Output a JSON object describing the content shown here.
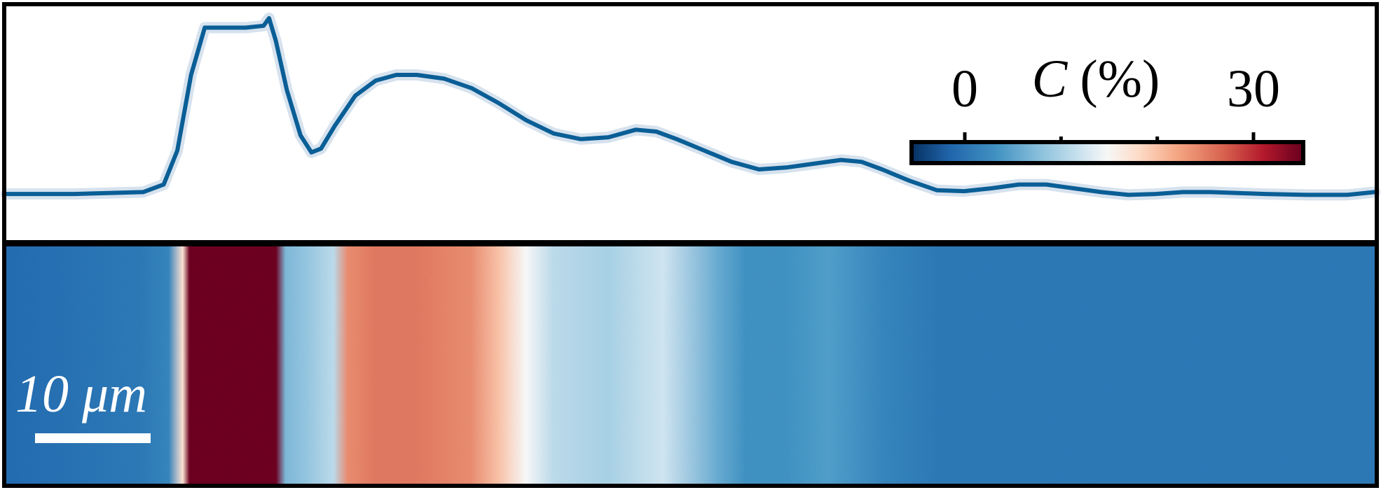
{
  "chart_data": {
    "type": "line",
    "title": "",
    "xlabel": "",
    "ylabel": "",
    "xlim": [
      0,
      100
    ],
    "ylim": [
      0,
      100
    ],
    "grid": false,
    "series": [
      {
        "color": "#0a5e96",
        "band_color": "#d6e2ee",
        "points": [
          [
            0,
            7
          ],
          [
            5,
            7
          ],
          [
            10,
            8
          ],
          [
            11.5,
            12
          ],
          [
            12.5,
            30
          ],
          [
            13.5,
            70
          ],
          [
            14.5,
            95
          ],
          [
            15.5,
            95
          ],
          [
            17.5,
            95
          ],
          [
            18.8,
            96
          ],
          [
            19.2,
            100
          ],
          [
            19.7,
            88
          ],
          [
            20.5,
            62
          ],
          [
            21.5,
            38
          ],
          [
            22.3,
            29
          ],
          [
            23,
            31
          ],
          [
            24,
            43
          ],
          [
            25.5,
            59
          ],
          [
            27,
            67
          ],
          [
            28.5,
            70
          ],
          [
            30,
            70
          ],
          [
            32,
            68
          ],
          [
            34,
            63
          ],
          [
            36,
            55
          ],
          [
            38,
            46
          ],
          [
            40,
            39
          ],
          [
            42,
            36
          ],
          [
            44,
            37
          ],
          [
            46,
            41
          ],
          [
            47.5,
            40
          ],
          [
            49,
            36
          ],
          [
            51,
            30
          ],
          [
            53,
            24
          ],
          [
            55,
            20
          ],
          [
            57,
            21
          ],
          [
            59,
            23
          ],
          [
            61,
            25
          ],
          [
            62.5,
            24
          ],
          [
            64,
            20
          ],
          [
            66,
            14
          ],
          [
            68,
            9
          ],
          [
            70,
            8.5
          ],
          [
            72,
            10
          ],
          [
            74,
            12
          ],
          [
            76,
            12
          ],
          [
            78,
            10
          ],
          [
            80,
            8
          ],
          [
            82,
            6.5
          ],
          [
            84,
            7
          ],
          [
            86,
            8
          ],
          [
            88,
            8
          ],
          [
            90,
            7.5
          ],
          [
            92,
            7
          ],
          [
            95,
            6.5
          ],
          [
            98,
            6.5
          ],
          [
            100,
            8
          ]
        ]
      }
    ],
    "heatmap": {
      "colormap": "RdBu_r",
      "vmin": 0,
      "vmax": 30,
      "column_profile": [
        [
          0,
          3
        ],
        [
          10,
          4
        ],
        [
          12,
          5
        ],
        [
          13,
          17
        ],
        [
          13.5,
          30
        ],
        [
          19,
          30
        ],
        [
          19.8,
          30
        ],
        [
          20.5,
          9
        ],
        [
          22,
          10
        ],
        [
          24,
          12
        ],
        [
          25,
          22
        ],
        [
          27,
          23
        ],
        [
          30,
          23
        ],
        [
          34,
          22
        ],
        [
          36,
          19
        ],
        [
          38,
          15
        ],
        [
          40,
          12
        ],
        [
          44,
          11
        ],
        [
          48,
          13
        ],
        [
          52,
          8
        ],
        [
          54,
          6
        ],
        [
          57,
          6
        ],
        [
          60,
          7
        ],
        [
          64,
          5
        ],
        [
          68,
          4
        ],
        [
          75,
          4
        ],
        [
          85,
          4
        ],
        [
          100,
          4
        ]
      ]
    },
    "colorbar": {
      "label_var": "C",
      "label_unit": "(%)",
      "tick_labels": [
        "0",
        "30"
      ],
      "minor_tick_values": [
        10,
        20
      ],
      "orientation": "horizontal",
      "placement": "top-right"
    },
    "scale_bar": {
      "label": "10 μm",
      "length_um": 10
    }
  }
}
